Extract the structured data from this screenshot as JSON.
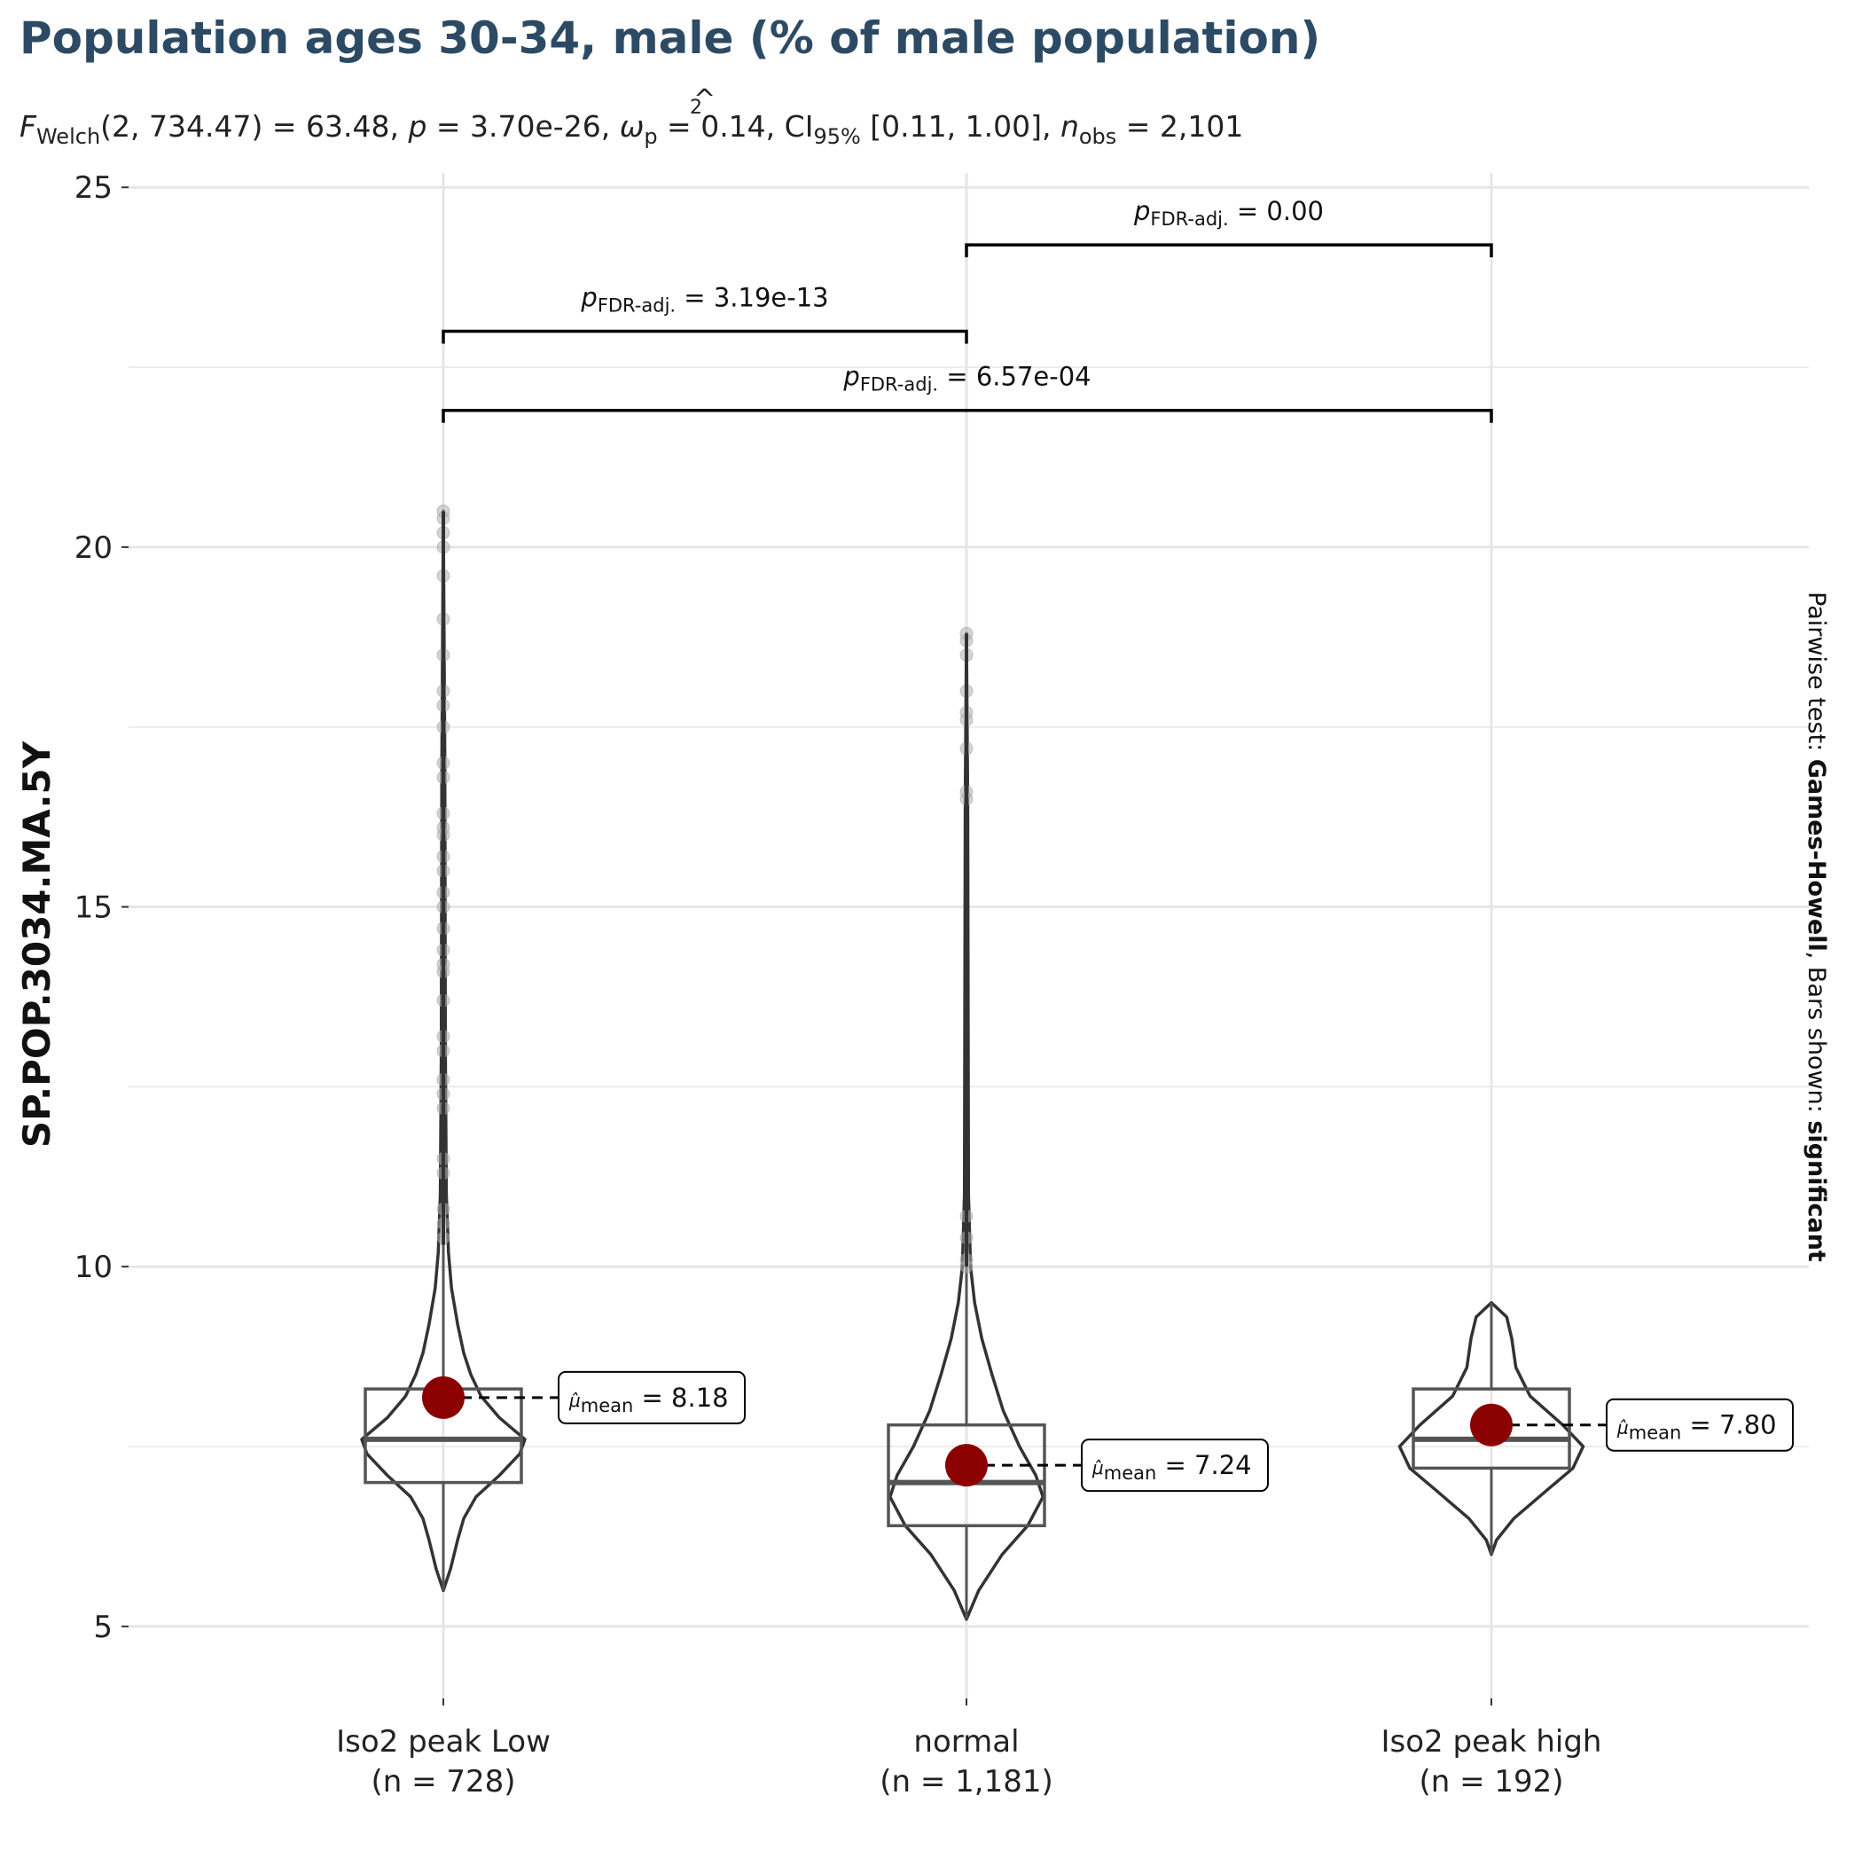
{
  "chart_data": {
    "type": "violin",
    "title": "Population ages 30-34, male (% of male population)",
    "subtitle": {
      "stat_symbol": "F",
      "stat_subscript": "Welch",
      "stat_args": "(2, 734.47) = 63.48, ",
      "p_symbol": "p",
      "p_value": " = 3.70e-26, ",
      "effect_symbol": "ω",
      "effect_hat": "^",
      "effect_superscript": "2",
      "effect_subscript": "p",
      "effect_value": " = 0.14, ",
      "ci_symbol": "CI",
      "ci_subscript": "95%",
      "ci_value": " [0.11, 1.00], ",
      "n_symbol": "n",
      "n_subscript": "obs",
      "n_value": " = 2,101"
    },
    "ylabel": "SP.POP.3034.MA.5Y",
    "ylim": [
      4,
      25.2
    ],
    "yticks": [
      5,
      10,
      15,
      20,
      25
    ],
    "grid": true,
    "caption": {
      "prefix": "Pairwise test: ",
      "test": "Games-Howell",
      "middle": ", Bars shown: ",
      "bars": "significant"
    },
    "groups": [
      {
        "name": "Iso2 peak  Low",
        "n_label": "(n = 728)",
        "min": 5.5,
        "q1": 7.0,
        "median": 7.6,
        "q3": 8.3,
        "max": 20.5,
        "whisker_high": 10.3,
        "mean": 8.18,
        "mean_label_symbol": "μ̂",
        "mean_label_sub": "mean",
        "mean_label_value": " = 8.18",
        "violin_profile": [
          [
            5.5,
            0.0
          ],
          [
            5.8,
            0.07
          ],
          [
            6.2,
            0.14
          ],
          [
            6.5,
            0.2
          ],
          [
            6.8,
            0.32
          ],
          [
            7.1,
            0.55
          ],
          [
            7.4,
            0.75
          ],
          [
            7.6,
            0.8
          ],
          [
            7.9,
            0.55
          ],
          [
            8.2,
            0.37
          ],
          [
            8.5,
            0.27
          ],
          [
            8.8,
            0.2
          ],
          [
            9.2,
            0.14
          ],
          [
            9.7,
            0.08
          ],
          [
            10.2,
            0.05
          ],
          [
            11,
            0.03
          ],
          [
            13,
            0.02
          ],
          [
            17,
            0.015
          ],
          [
            20.5,
            0.0
          ]
        ],
        "outliers": [
          10.4,
          10.6,
          10.8,
          11.3,
          11.5,
          12.2,
          12.4,
          12.6,
          13.0,
          13.2,
          13.7,
          14.1,
          14.2,
          14.4,
          14.7,
          15.0,
          15.2,
          15.5,
          15.7,
          16.0,
          16.1,
          16.3,
          16.8,
          17.0,
          17.5,
          17.8,
          18.0,
          18.5,
          19.0,
          19.6,
          20.0,
          20.2,
          20.4,
          20.5
        ]
      },
      {
        "name": "normal",
        "n_label": "(n = 1,181)",
        "min": 5.1,
        "q1": 6.4,
        "median": 7.0,
        "q3": 7.8,
        "max": 18.8,
        "whisker_high": 10.0,
        "mean": 7.24,
        "mean_label_symbol": "μ̂",
        "mean_label_sub": "mean",
        "mean_label_value": " = 7.24",
        "violin_profile": [
          [
            5.1,
            0.0
          ],
          [
            5.5,
            0.12
          ],
          [
            6.0,
            0.35
          ],
          [
            6.4,
            0.6
          ],
          [
            6.8,
            0.75
          ],
          [
            7.1,
            0.68
          ],
          [
            7.5,
            0.52
          ],
          [
            8.0,
            0.36
          ],
          [
            8.5,
            0.25
          ],
          [
            9.0,
            0.15
          ],
          [
            9.5,
            0.08
          ],
          [
            10.0,
            0.04
          ],
          [
            11.0,
            0.02
          ],
          [
            16.5,
            0.012
          ],
          [
            18.8,
            0.0
          ]
        ],
        "outliers": [
          10.0,
          10.1,
          10.4,
          10.7,
          16.5,
          16.6,
          17.2,
          17.6,
          17.7,
          18.0,
          18.5,
          18.7,
          18.8
        ]
      },
      {
        "name": "Iso2 peak  high",
        "n_label": "(n = 192)",
        "min": 6.0,
        "q1": 7.2,
        "median": 7.6,
        "q3": 8.3,
        "max": 9.5,
        "whisker_high": 9.5,
        "mean": 7.8,
        "mean_label_symbol": "μ̂",
        "mean_label_sub": "mean",
        "mean_label_value": " = 7.80",
        "violin_profile": [
          [
            6.0,
            0.0
          ],
          [
            6.2,
            0.05
          ],
          [
            6.5,
            0.22
          ],
          [
            6.9,
            0.55
          ],
          [
            7.2,
            0.8
          ],
          [
            7.5,
            0.9
          ],
          [
            7.8,
            0.7
          ],
          [
            8.2,
            0.38
          ],
          [
            8.6,
            0.24
          ],
          [
            9.0,
            0.2
          ],
          [
            9.3,
            0.15
          ],
          [
            9.5,
            0.0
          ]
        ],
        "outliers": []
      }
    ],
    "comparisons": [
      {
        "from": 0,
        "to": 1,
        "y": 23.0,
        "p_symbol": "p",
        "p_subscript": "FDR-adj.",
        "p_value": " = 3.19e-13"
      },
      {
        "from": 1,
        "to": 2,
        "y": 24.2,
        "p_symbol": "p",
        "p_subscript": "FDR-adj.",
        "p_value": " = 0.00"
      },
      {
        "from": 0,
        "to": 2,
        "y": 21.9,
        "p_symbol": "p",
        "p_subscript": "FDR-adj.",
        "p_value": " = 6.57e-04"
      }
    ],
    "colors": {
      "violin": "#333333",
      "box": "#555555",
      "mean_point": "#8b0000",
      "outlier": "#b0b0b0",
      "grid": "#e6e6e6",
      "title": "#2c4a63"
    }
  }
}
